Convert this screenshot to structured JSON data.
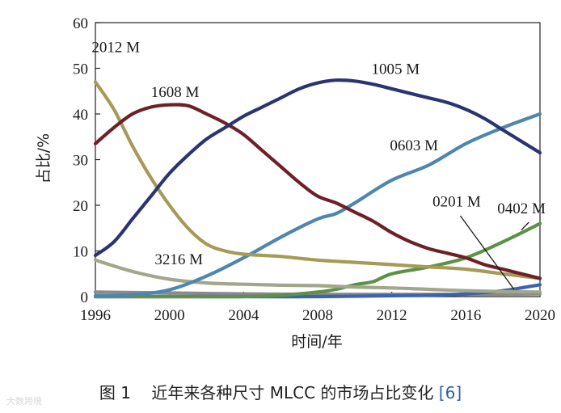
{
  "chart_data": {
    "type": "line",
    "title": "",
    "xlabel": "时间/年",
    "ylabel": "占比/%",
    "xlim": [
      1996,
      2020
    ],
    "ylim": [
      0,
      60
    ],
    "x_ticks": [
      1996,
      2000,
      2004,
      2008,
      2012,
      2016,
      2020
    ],
    "y_ticks": [
      0,
      10,
      20,
      30,
      40,
      50,
      60
    ],
    "grid": false,
    "legend": "inline labels",
    "series": [
      {
        "name": "2012 M",
        "color": "#a69a57",
        "points": [
          [
            1996,
            47
          ],
          [
            1997,
            41
          ],
          [
            1998,
            33
          ],
          [
            1999,
            26
          ],
          [
            2000,
            20
          ],
          [
            2001,
            15
          ],
          [
            2002,
            11.5
          ],
          [
            2003,
            10
          ],
          [
            2004,
            9.3
          ],
          [
            2006,
            8.8
          ],
          [
            2008,
            8
          ],
          [
            2010,
            7.5
          ],
          [
            2012,
            7
          ],
          [
            2014,
            6.5
          ],
          [
            2016,
            6
          ],
          [
            2018,
            5
          ],
          [
            2020,
            4
          ]
        ]
      },
      {
        "name": "1608 M",
        "color": "#6e2027",
        "points": [
          [
            1996,
            33.5
          ],
          [
            1997,
            37
          ],
          [
            1998,
            40
          ],
          [
            1999,
            41.5
          ],
          [
            2000,
            42
          ],
          [
            2001,
            41.8
          ],
          [
            2002,
            40
          ],
          [
            2003,
            38
          ],
          [
            2004,
            35.5
          ],
          [
            2005,
            32
          ],
          [
            2006,
            28.5
          ],
          [
            2007,
            25
          ],
          [
            2008,
            22
          ],
          [
            2009,
            20.5
          ],
          [
            2010,
            18.5
          ],
          [
            2011,
            16.5
          ],
          [
            2012,
            14
          ],
          [
            2013,
            12
          ],
          [
            2014,
            10.5
          ],
          [
            2015,
            9.5
          ],
          [
            2016,
            8.5
          ],
          [
            2017,
            7
          ],
          [
            2018,
            6
          ],
          [
            2019,
            5
          ],
          [
            2020,
            4
          ]
        ]
      },
      {
        "name": "1005 M",
        "color": "#2a3472",
        "points": [
          [
            1996,
            9
          ],
          [
            1997,
            12
          ],
          [
            1998,
            17
          ],
          [
            1999,
            22
          ],
          [
            2000,
            27
          ],
          [
            2001,
            31
          ],
          [
            2002,
            34.5
          ],
          [
            2003,
            37
          ],
          [
            2004,
            39.5
          ],
          [
            2005,
            41.5
          ],
          [
            2006,
            43.5
          ],
          [
            2007,
            45.5
          ],
          [
            2008,
            46.8
          ],
          [
            2009,
            47.4
          ],
          [
            2010,
            47.2
          ],
          [
            2011,
            46.5
          ],
          [
            2012,
            45.5
          ],
          [
            2013,
            44.5
          ],
          [
            2014,
            43.5
          ],
          [
            2015,
            42.5
          ],
          [
            2016,
            41
          ],
          [
            2017,
            39
          ],
          [
            2018,
            36.5
          ],
          [
            2019,
            34
          ],
          [
            2020,
            31.5
          ]
        ]
      },
      {
        "name": "0603 M",
        "color": "#4d86ae",
        "points": [
          [
            1996,
            0.2
          ],
          [
            1998,
            0.4
          ],
          [
            2000,
            1.5
          ],
          [
            2002,
            4.5
          ],
          [
            2004,
            8.5
          ],
          [
            2006,
            13
          ],
          [
            2008,
            17
          ],
          [
            2009,
            18.2
          ],
          [
            2010,
            20.5
          ],
          [
            2012,
            25.5
          ],
          [
            2014,
            28.8
          ],
          [
            2016,
            33.5
          ],
          [
            2018,
            37
          ],
          [
            2020,
            40
          ]
        ]
      },
      {
        "name": "3216 M",
        "color": "#a3a68a",
        "points": [
          [
            1996,
            8
          ],
          [
            1998,
            5.5
          ],
          [
            2000,
            3.8
          ],
          [
            2002,
            3
          ],
          [
            2004,
            2.7
          ],
          [
            2006,
            2.5
          ],
          [
            2008,
            2.4
          ],
          [
            2010,
            2.1
          ],
          [
            2012,
            1.9
          ],
          [
            2014,
            1.6
          ],
          [
            2016,
            1.3
          ],
          [
            2018,
            1.1
          ],
          [
            2020,
            1
          ]
        ]
      },
      {
        "name": "0402 M",
        "color": "#5c9247",
        "points": [
          [
            1996,
            0
          ],
          [
            2000,
            0
          ],
          [
            2004,
            0
          ],
          [
            2006,
            0.3
          ],
          [
            2008,
            1
          ],
          [
            2009,
            1.6
          ],
          [
            2010,
            2.6
          ],
          [
            2011,
            3.3
          ],
          [
            2012,
            5
          ],
          [
            2014,
            6.5
          ],
          [
            2016,
            8.5
          ],
          [
            2018,
            12
          ],
          [
            2020,
            16
          ]
        ]
      },
      {
        "name": "0201 M",
        "color": "#3a64b0",
        "points": [
          [
            1996,
            0
          ],
          [
            2004,
            0
          ],
          [
            2008,
            0
          ],
          [
            2012,
            0.2
          ],
          [
            2014,
            0.3
          ],
          [
            2016,
            0.6
          ],
          [
            2018,
            1.3
          ],
          [
            2020,
            2.6
          ]
        ]
      },
      {
        "name": "",
        "color": "#8a8a8a",
        "points": [
          [
            1996,
            1
          ],
          [
            2000,
            0.8
          ],
          [
            2004,
            0.6
          ],
          [
            2008,
            0.5
          ],
          [
            2012,
            0.5
          ],
          [
            2016,
            0.5
          ],
          [
            2020,
            0.6
          ]
        ]
      }
    ],
    "annotations": [
      {
        "text": "2012 M",
        "series": "2012 M"
      },
      {
        "text": "1608 M",
        "series": "1608 M"
      },
      {
        "text": "1005 M",
        "series": "1005 M"
      },
      {
        "text": "0603 M",
        "series": "0603 M"
      },
      {
        "text": "3216 M",
        "series": "3216 M"
      },
      {
        "text": "0201 M",
        "series": "0201 M"
      },
      {
        "text": "0402 M",
        "series": "0402 M"
      }
    ]
  },
  "caption": {
    "figure": "图 1",
    "text": "近年来各种尺寸 MLCC 的市场占比变化",
    "ref": "[6]"
  },
  "watermark": "大数跨境"
}
